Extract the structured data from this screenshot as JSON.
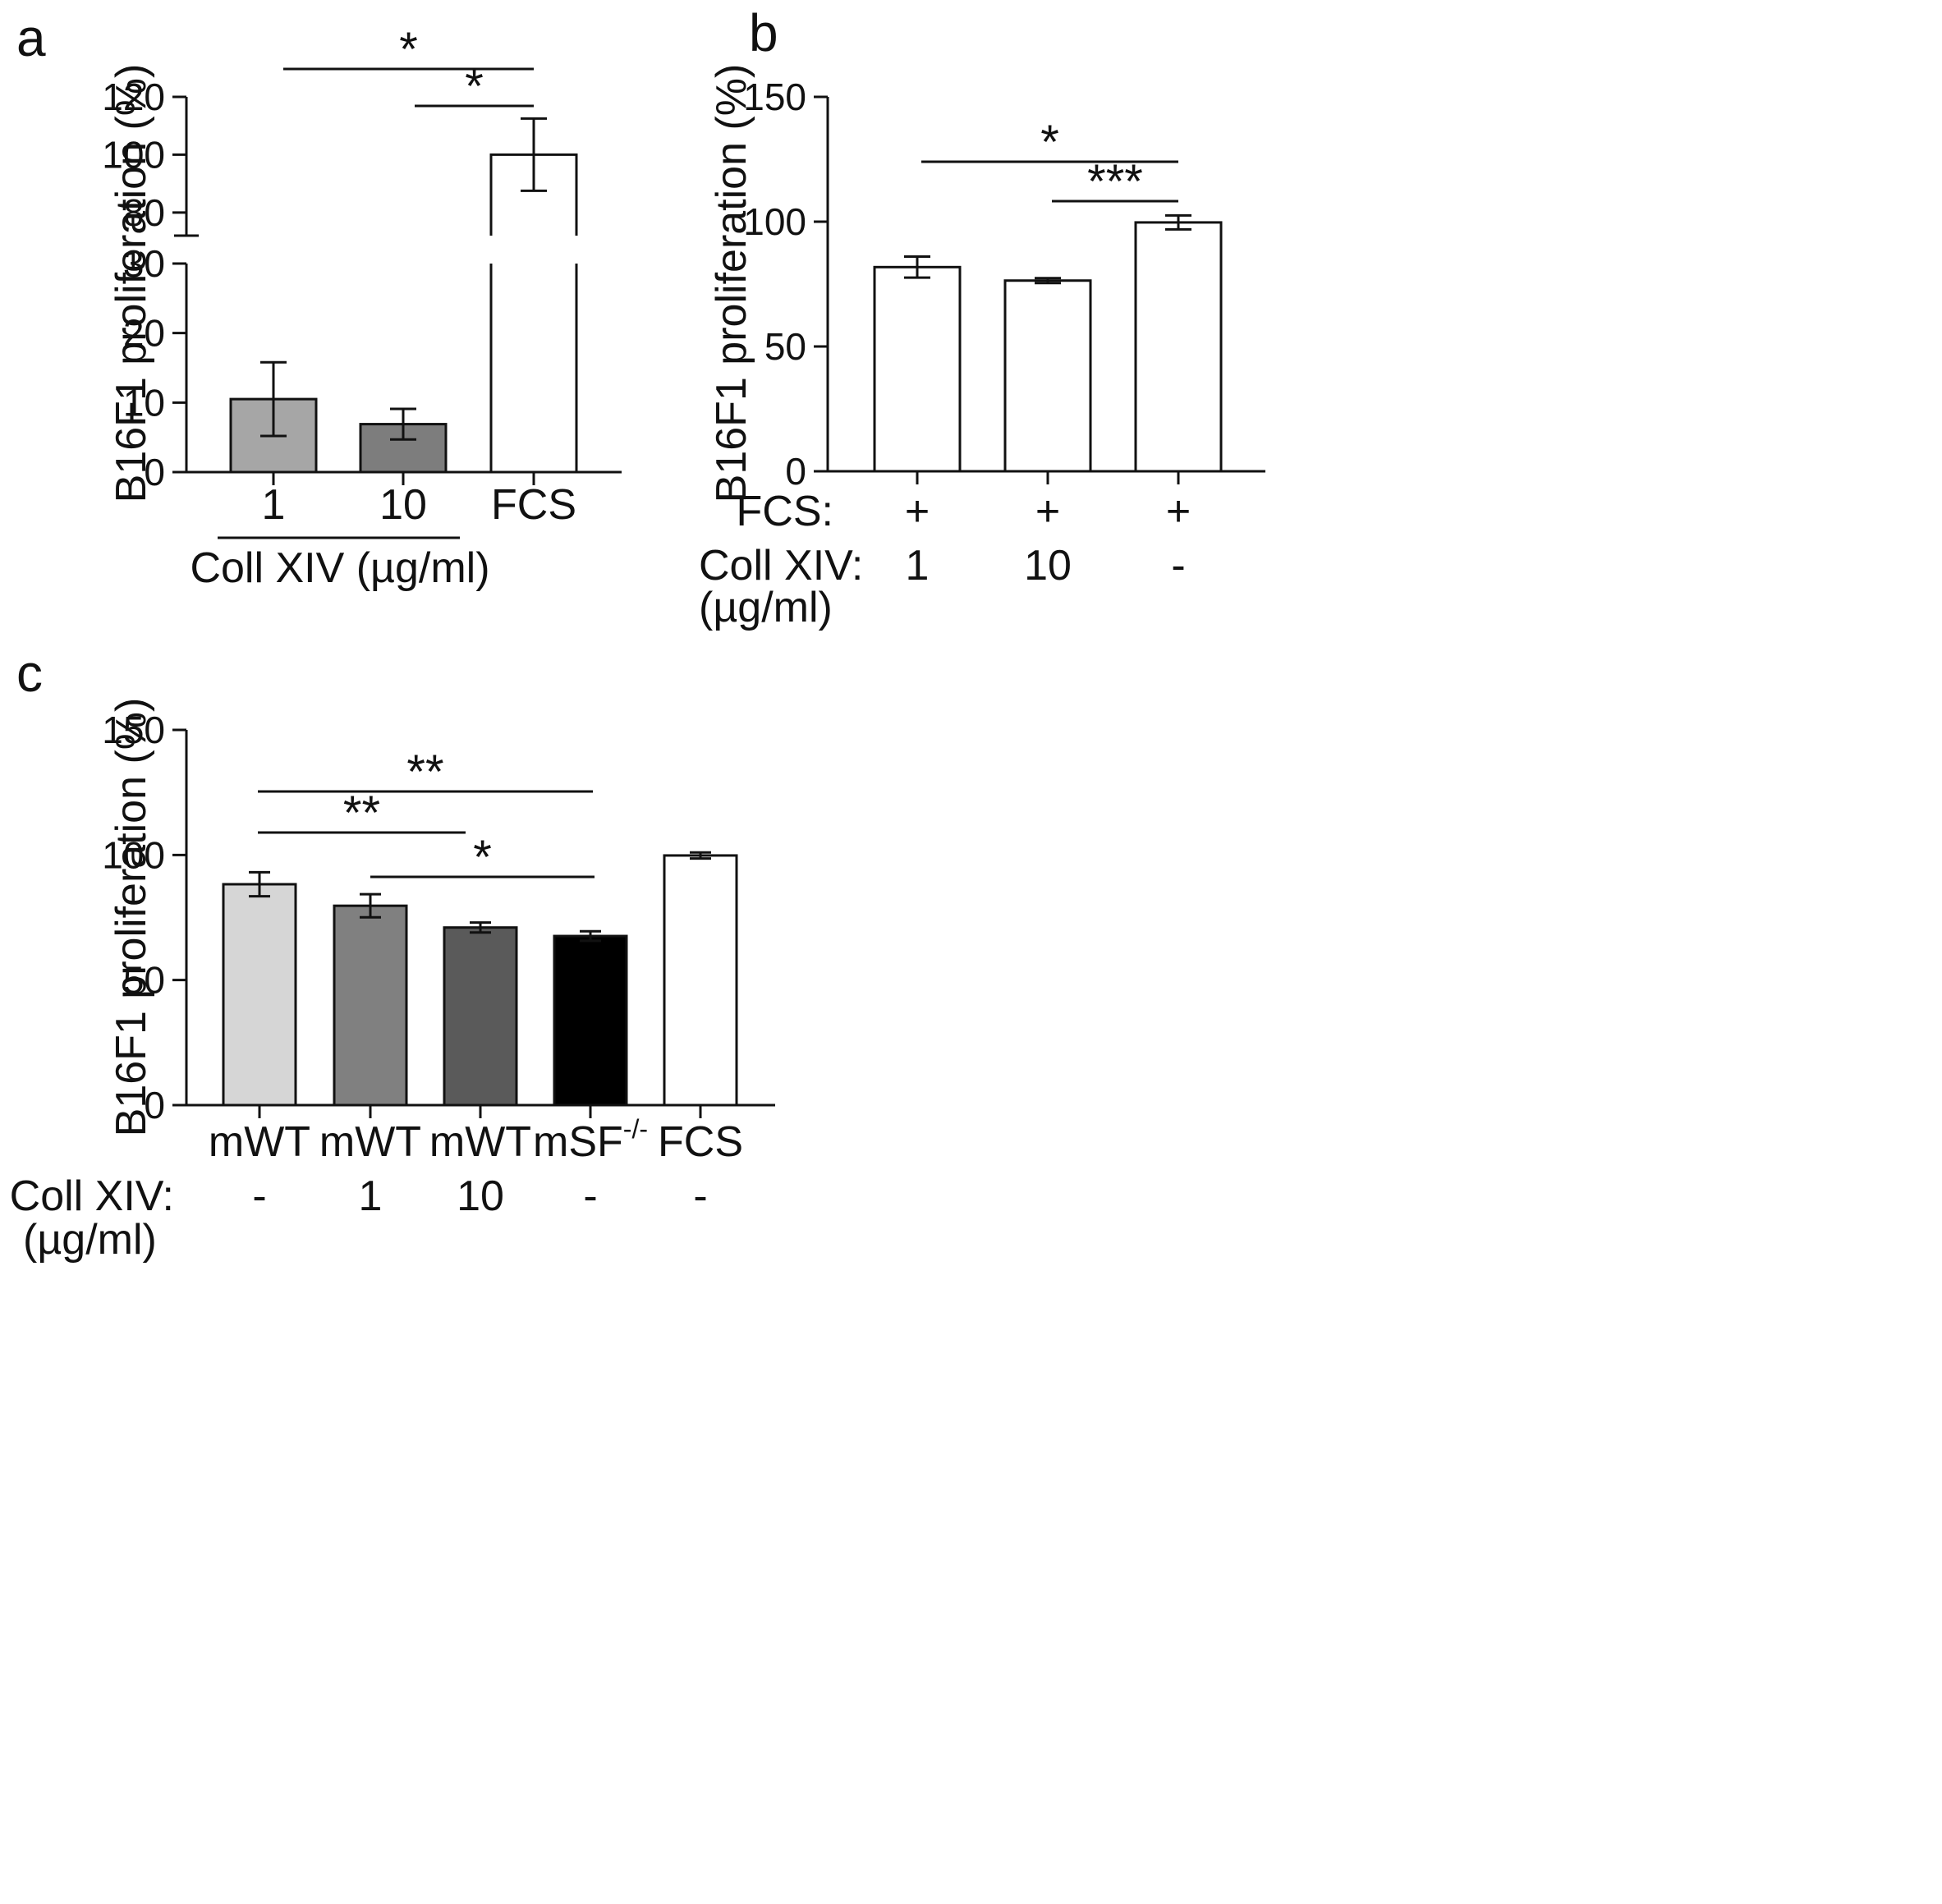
{
  "chart_data": [
    {
      "panel": "a",
      "type": "bar",
      "ylabel": "B16F1 proliferation (%)",
      "axis_break": {
        "lower_range": [
          0,
          30
        ],
        "upper_range": [
          72,
          120
        ]
      },
      "yticks_lower": [
        0,
        10,
        20,
        30
      ],
      "yticks_upper": [
        80,
        100,
        120
      ],
      "categories": [
        "1",
        "10",
        "FCS"
      ],
      "group_label": "Coll XIV (µg/ml)",
      "group_label_spans": [
        "1",
        "10"
      ],
      "values": [
        10.5,
        6.9,
        100
      ],
      "errors": [
        5.3,
        2.2,
        12.5
      ],
      "colors": [
        "#a6a6a6",
        "#7d7d7d",
        "#ffffff"
      ],
      "significance": [
        {
          "from": 0,
          "to": 2,
          "label": "*"
        },
        {
          "from": 1,
          "to": 2,
          "label": "*"
        }
      ]
    },
    {
      "panel": "b",
      "type": "bar",
      "ylabel": "B16F1 proliferation (%)",
      "ylim": [
        0,
        150
      ],
      "yticks": [
        0,
        50,
        100,
        150
      ],
      "categories": [
        "1",
        "10",
        "-"
      ],
      "row_labels": [
        {
          "label": "FCS:",
          "values": [
            "+",
            "+",
            "+"
          ]
        },
        {
          "label": "Coll XIV:",
          "sublabel": "(µg/ml)",
          "values": [
            "1",
            "10",
            "-"
          ]
        }
      ],
      "values": [
        81.8,
        76.4,
        99.7
      ],
      "errors": [
        4.2,
        1.0,
        2.8
      ],
      "colors": [
        "#ffffff",
        "#ffffff",
        "#ffffff"
      ],
      "significance": [
        {
          "from": 0,
          "to": 2,
          "label": "*"
        },
        {
          "from": 1,
          "to": 2,
          "label": "***"
        }
      ]
    },
    {
      "panel": "c",
      "type": "bar",
      "ylabel": "B16F1 proliferation (%)",
      "ylim": [
        0,
        150
      ],
      "yticks": [
        0,
        50,
        100,
        150
      ],
      "categories": [
        "mWT",
        "mWT",
        "mWT",
        "mSF",
        "FCS"
      ],
      "category_superscripts": [
        "",
        "",
        "",
        "-/-",
        ""
      ],
      "row_labels": [
        {
          "label": "Coll XIV:",
          "sublabel": "(µg/ml)",
          "values": [
            "-",
            "1",
            "10",
            "-",
            "-"
          ]
        }
      ],
      "values": [
        88.3,
        79.7,
        71.0,
        67.6,
        99.8
      ],
      "errors": [
        4.8,
        4.6,
        2.0,
        1.9,
        1.2
      ],
      "colors": [
        "#d6d6d6",
        "#808080",
        "#5a5a5a",
        "#000000",
        "#ffffff"
      ],
      "significance": [
        {
          "from": 0,
          "to": 3,
          "label": "**"
        },
        {
          "from": 0,
          "to": 2,
          "label": "**"
        },
        {
          "from": 1,
          "to": 3,
          "label": "*"
        }
      ]
    }
  ]
}
